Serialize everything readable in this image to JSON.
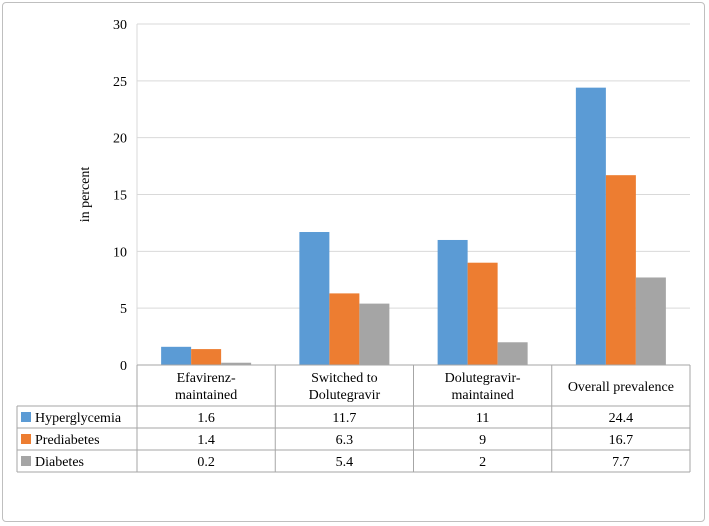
{
  "chart_data": {
    "type": "bar",
    "title": "",
    "xlabel": "",
    "ylabel": "in percent",
    "ylim": [
      0,
      30
    ],
    "yticks": [
      0,
      5,
      10,
      15,
      20,
      25,
      30
    ],
    "grid": true,
    "legend": "data-table",
    "categories": [
      [
        "Efavirenz-",
        "maintained"
      ],
      [
        "Switched to",
        "Dolutegravir"
      ],
      [
        "Dolutegravir-",
        "maintained"
      ],
      [
        "Overall prevalence"
      ]
    ],
    "series": [
      {
        "name": "Hyperglycemia",
        "color": "#5b9bd5",
        "values": [
          1.6,
          11.7,
          11,
          24.4
        ]
      },
      {
        "name": "Prediabetes",
        "color": "#ed7d31",
        "values": [
          1.4,
          6.3,
          9,
          16.7
        ]
      },
      {
        "name": "Diabetes",
        "color": "#a5a5a5",
        "values": [
          0.2,
          5.4,
          2,
          7.7
        ]
      }
    ]
  }
}
